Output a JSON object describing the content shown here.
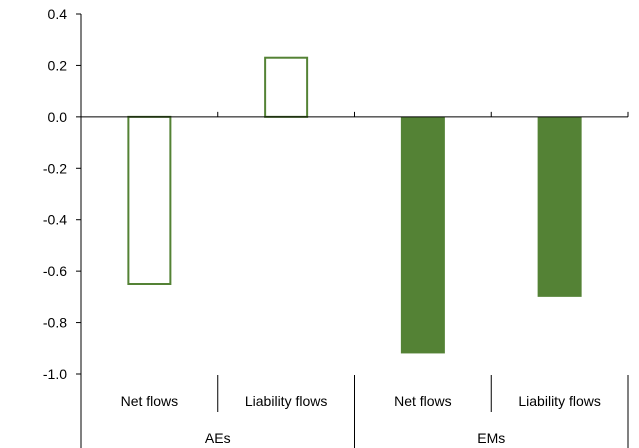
{
  "chart_data": {
    "type": "bar",
    "title": "",
    "xlabel": "",
    "ylabel": "",
    "ylim": [
      -1.0,
      0.4
    ],
    "yticks": [
      0.4,
      0.2,
      0.0,
      -0.2,
      -0.4,
      -0.6,
      -0.8,
      -1.0
    ],
    "ytick_labels": [
      "0.4",
      "0.2",
      "0.0",
      "-0.2",
      "-0.4",
      "-0.6",
      "-0.8",
      "-1.0"
    ],
    "grid": false,
    "legend": "none",
    "groups": [
      "AEs",
      "EMs"
    ],
    "categories": [
      "Net flows",
      "Liability flows",
      "Net flows",
      "Liability flows"
    ],
    "category_group": [
      0,
      0,
      1,
      1
    ],
    "values": [
      -0.65,
      0.23,
      -0.92,
      -0.7
    ],
    "bar_style": [
      "outline",
      "outline",
      "filled",
      "filled"
    ],
    "colors": {
      "bar": "#548235",
      "axis": "#000000",
      "background": "#ffffff"
    }
  }
}
